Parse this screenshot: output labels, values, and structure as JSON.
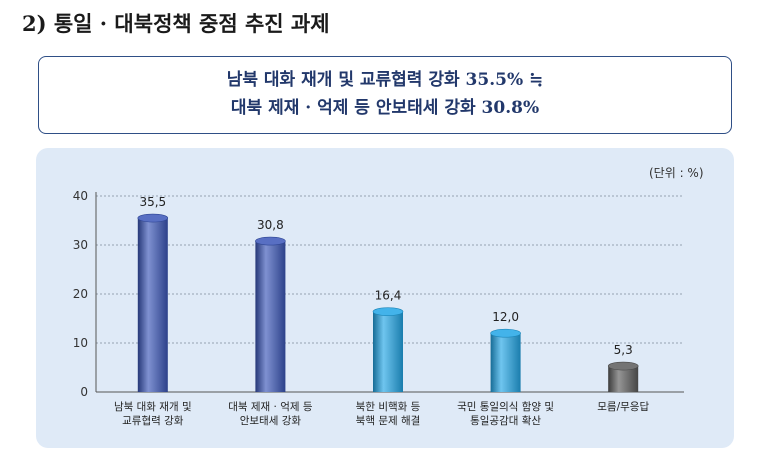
{
  "section_title": "2) 통일 · 대북정책 중점 추진 과제",
  "summary": {
    "line1": "남북 대화 재개 및 교류협력 강화 35.5% ≒",
    "line2": "대북 제재 · 억제 등 안보태세 강화 30.8%"
  },
  "chart_data": {
    "type": "bar",
    "unit_label": "(단위 : %)",
    "ylim": [
      0,
      40
    ],
    "yticks": [
      0,
      10,
      20,
      30,
      40
    ],
    "grid": true,
    "categories": [
      [
        "남북 대화 재개 및",
        "교류협력 강화"
      ],
      [
        "대북 제재 · 억제 등",
        "안보태세 강화"
      ],
      [
        "북한 비핵화 등",
        "북핵 문제 해결"
      ],
      [
        "국민 통일의식 함양 및",
        "통일공감대 확산"
      ],
      [
        "모름/무응답"
      ]
    ],
    "values": [
      35.5,
      30.8,
      16.4,
      12.0,
      5.3
    ],
    "value_labels": [
      "35,5",
      "30,8",
      "16,4",
      "12,0",
      "5,3"
    ],
    "bar_colors": [
      "#3a56b8",
      "#3a56b8",
      "#22a6e6",
      "#22a6e6",
      "#5c5c5c"
    ]
  }
}
